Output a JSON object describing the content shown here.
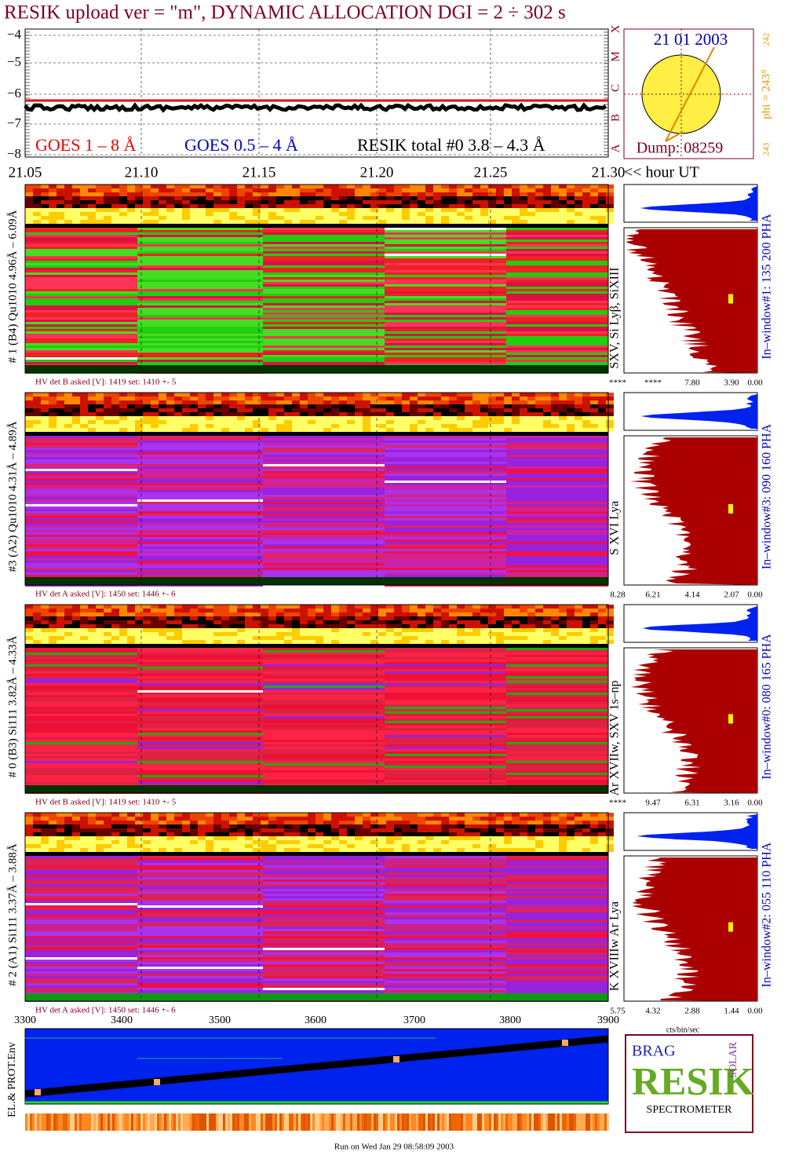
{
  "header": {
    "title": "RESIK upload ver = \"m\", DYNAMIC ALLOCATION  DGI =   2 ÷ 302 s"
  },
  "goes_panel": {
    "y_tick_labels": [
      "−4",
      "−5",
      "−6",
      "−7",
      "−8"
    ],
    "class_labels": [
      "X",
      "M",
      "C",
      "B",
      "A"
    ],
    "legend": [
      "GOES 1 – 8 Å",
      "GOES 0.5 – 4 Å",
      "RESIK total #0  3.8 – 4.3 Å"
    ]
  },
  "sun_panel": {
    "date": "21 01 2003",
    "dump": "Dump: 08259",
    "phi": "phi = 243°",
    "phi_small": "242",
    "phi_bottom": "243"
  },
  "time_axis": {
    "labels": [
      "21.05",
      "21.10",
      "21.15",
      "21.20",
      "21.25",
      "21.30"
    ],
    "unit": "<< hour UT"
  },
  "detectors": [
    {
      "label": "# 1 (B4) Qu1010 4.96Å – 6.09Å",
      "hv": "HV det B asked [V]:  1419 set:  1410  +-   5",
      "lines": "SXV, Si Lyβ, SiXIII",
      "hist_ticks": [
        "****",
        "****",
        "7.80",
        "3.90",
        "0.00"
      ],
      "window": "In–window#1:  135 200 PHA"
    },
    {
      "label": "#3 (A2) Qu1010  4.31Å – 4.89Å",
      "hv": "HV det A asked [V]:  1450 set:  1446  +-   6",
      "lines": "S XVI Lya",
      "hist_ticks": [
        "8.28",
        "6.21",
        "4.14",
        "2.07",
        "0.00"
      ],
      "window": "In–window#3:  090 160 PHA"
    },
    {
      "label": "# 0 (B3) Si111  3.82Å – 4.33Å",
      "hv": "HV det B asked [V]:  1419 set:  1410  +-   5",
      "lines": "Ar XVIIw,  SXV 1s–np",
      "hist_ticks": [
        "****",
        "9.47",
        "6.31",
        "3.16",
        "0.00"
      ],
      "window": "In–window#0:  080 165 PHA"
    },
    {
      "label": "# 2 (A1) Si111  3.37Å –  3.88Å",
      "hv": "HV det A asked [V]:  1450 set:  1446  +-   6",
      "lines": "K XVIIIw  Ar Lya",
      "hist_ticks": [
        "5.75",
        "4.32",
        "2.88",
        "1.44",
        "0.00"
      ],
      "window": "In–window#2:  055 110 PHA"
    }
  ],
  "counts_axis_label": "cts/bin/sec",
  "channel_axis": {
    "labels": [
      "3300",
      "3400",
      "3500",
      "3600",
      "3700",
      "3800",
      "3900"
    ]
  },
  "env_panel": {
    "label": "EL.& PROT.Env"
  },
  "logo": {
    "words": [
      "BRAG",
      "RESIK",
      "SOLAR",
      "SPECTROMETER"
    ]
  },
  "footer": "Run on Wed Jan 29 08:58:09 2003"
}
